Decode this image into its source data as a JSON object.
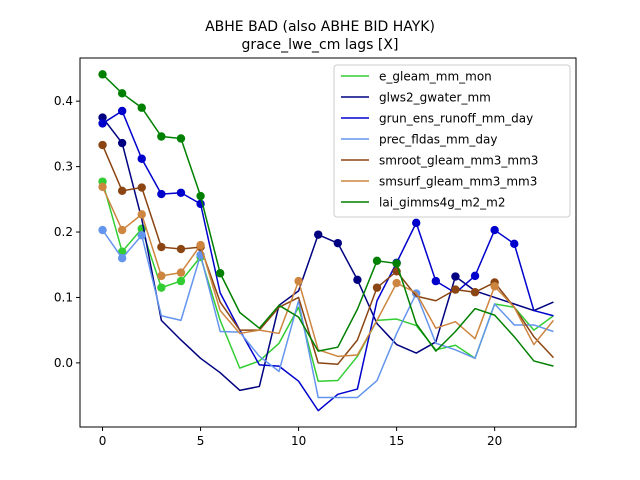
{
  "chart_data": {
    "type": "line",
    "title": "ABHE BAD (also ABHE BID HAYK)",
    "subtitle": "grace_lwe_cm lags [X]",
    "xlabel": "",
    "ylabel": "",
    "xlim": [
      -1.15,
      24.15
    ],
    "ylim": [
      -0.098,
      0.466
    ],
    "xticks": [
      0,
      5,
      10,
      15,
      20
    ],
    "yticks": [
      0.0,
      0.1,
      0.2,
      0.3,
      0.4
    ],
    "ytick_labels": [
      "0.0",
      "0.1",
      "0.2",
      "0.3",
      "0.4"
    ],
    "grid": false,
    "legend_position": "upper-right",
    "x": [
      0,
      1,
      2,
      3,
      4,
      5,
      6,
      7,
      8,
      9,
      10,
      11,
      12,
      13,
      14,
      15,
      16,
      17,
      18,
      19,
      20,
      21,
      22,
      23
    ],
    "series": [
      {
        "name": "e_gleam_mm_mon",
        "color": "#32cd32",
        "values": [
          0.277,
          0.17,
          0.205,
          0.115,
          0.125,
          0.162,
          0.065,
          -0.008,
          0.003,
          0.03,
          0.085,
          -0.028,
          -0.027,
          0.01,
          0.065,
          0.067,
          0.057,
          0.02,
          0.027,
          0.007,
          0.09,
          0.085,
          0.05,
          0.072
        ],
        "markers": [
          0,
          1,
          2,
          3,
          4,
          5
        ]
      },
      {
        "name": "glws2_gwater_mm",
        "color": "#000080",
        "values": [
          0.375,
          0.336,
          0.22,
          0.065,
          0.035,
          0.007,
          -0.015,
          -0.042,
          -0.036,
          0.088,
          0.11,
          0.196,
          0.183,
          0.127,
          0.06,
          0.028,
          0.015,
          0.032,
          0.132,
          0.11,
          0.1,
          0.09,
          0.08,
          0.093
        ],
        "markers": [
          0,
          1,
          11,
          12,
          13,
          18
        ]
      },
      {
        "name": "grun_ens_runoff_mm_day",
        "color": "#0000cd",
        "values": [
          0.366,
          0.385,
          0.312,
          0.258,
          0.26,
          0.243,
          0.107,
          0.05,
          -0.003,
          -0.005,
          -0.028,
          -0.073,
          -0.048,
          -0.04,
          0.095,
          0.153,
          0.214,
          0.125,
          0.107,
          0.133,
          0.203,
          0.182,
          0.08,
          0.072
        ],
        "markers": [
          0,
          1,
          2,
          3,
          4,
          5,
          15,
          16,
          17,
          19,
          20,
          21
        ]
      },
      {
        "name": "prec_fldas_mm_day",
        "color": "#6495ed",
        "values": [
          0.203,
          0.16,
          0.195,
          0.072,
          0.065,
          0.165,
          0.048,
          0.047,
          0.01,
          -0.013,
          0.095,
          -0.053,
          -0.053,
          -0.053,
          -0.027,
          0.045,
          0.106,
          0.03,
          0.02,
          0.007,
          0.09,
          0.058,
          0.058,
          0.048
        ],
        "markers": [
          0,
          1,
          2,
          5,
          16
        ]
      },
      {
        "name": "smroot_gleam_mm3_mm3",
        "color": "#8b4513",
        "values": [
          0.333,
          0.263,
          0.268,
          0.177,
          0.174,
          0.177,
          0.093,
          0.05,
          0.05,
          0.085,
          0.1,
          0.0,
          -0.002,
          0.035,
          0.115,
          0.14,
          0.102,
          0.095,
          0.112,
          0.108,
          0.123,
          0.085,
          0.04,
          0.008
        ],
        "markers": [
          0,
          1,
          2,
          3,
          4,
          5,
          14,
          15,
          18,
          19,
          20
        ]
      },
      {
        "name": "smsurf_gleam_mm3_mm3",
        "color": "#cd853f",
        "values": [
          0.269,
          0.203,
          0.227,
          0.133,
          0.138,
          0.18,
          0.08,
          0.045,
          0.05,
          0.045,
          0.125,
          0.02,
          0.01,
          0.012,
          0.065,
          0.122,
          0.107,
          0.053,
          0.063,
          0.037,
          0.117,
          0.085,
          0.028,
          0.065
        ],
        "markers": [
          0,
          1,
          2,
          3,
          4,
          5,
          10,
          15,
          20
        ]
      },
      {
        "name": "lai_gimms4g_m2_m2",
        "color": "#008000",
        "values": [
          0.441,
          0.412,
          0.39,
          0.346,
          0.343,
          0.255,
          0.137,
          0.077,
          0.053,
          0.088,
          0.07,
          0.018,
          0.024,
          0.082,
          0.156,
          0.152,
          0.06,
          0.018,
          0.048,
          0.083,
          0.073,
          0.04,
          0.003,
          -0.005
        ],
        "markers": [
          0,
          1,
          2,
          3,
          4,
          5,
          6,
          14,
          15
        ]
      }
    ]
  }
}
